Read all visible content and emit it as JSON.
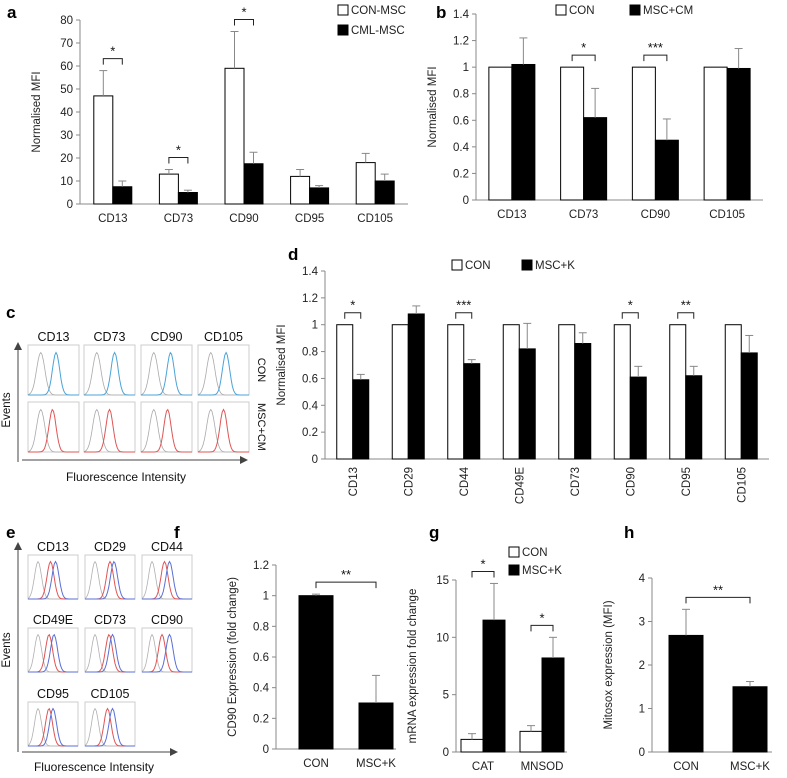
{
  "chart_data": [
    {
      "id": "a",
      "panel_letter": "a",
      "type": "bar",
      "ylabel": "Normalised MFI",
      "ylim": [
        0,
        80
      ],
      "yticks": [
        0,
        10,
        20,
        30,
        40,
        50,
        60,
        70,
        80
      ],
      "categories": [
        "CD13",
        "CD73",
        "CD90",
        "CD95",
        "CD105"
      ],
      "series": [
        {
          "name": "CON-MSC",
          "fill": "#ffffff",
          "values": [
            47,
            13,
            59,
            12,
            18
          ],
          "errors": [
            11,
            2,
            16,
            3,
            4
          ]
        },
        {
          "name": "CML-MSC",
          "fill": "#000000",
          "values": [
            7.5,
            5,
            17.5,
            7,
            10
          ],
          "errors": [
            2.5,
            1,
            5,
            1,
            3
          ]
        }
      ],
      "significance": [
        {
          "category": 0,
          "label": "*"
        },
        {
          "category": 1,
          "label": "*"
        },
        {
          "category": 2,
          "label": "*"
        }
      ],
      "legend_position": "top-right"
    },
    {
      "id": "b",
      "panel_letter": "b",
      "type": "bar",
      "ylabel": "Normalised MFI",
      "ylim": [
        0,
        1.4
      ],
      "yticks": [
        "0",
        "0.2",
        "0.4",
        "0.6",
        "0.8",
        "1",
        "1.2",
        "1.4"
      ],
      "categories": [
        "CD13",
        "CD73",
        "CD90",
        "CD105"
      ],
      "series": [
        {
          "name": "CON",
          "fill": "#ffffff",
          "values": [
            1,
            1,
            1,
            1
          ],
          "errors": [
            0,
            0,
            0,
            0
          ]
        },
        {
          "name": "MSC+CM",
          "fill": "#000000",
          "values": [
            1.02,
            0.62,
            0.45,
            0.99
          ],
          "errors": [
            0.2,
            0.22,
            0.16,
            0.15
          ]
        }
      ],
      "significance": [
        {
          "category": 1,
          "label": "*"
        },
        {
          "category": 2,
          "label": "***"
        }
      ],
      "legend_position": "top"
    },
    {
      "id": "d",
      "panel_letter": "d",
      "type": "bar",
      "ylabel": "Normalised MFI",
      "ylim": [
        0,
        1.4
      ],
      "yticks": [
        "0",
        "0.2",
        "0.4",
        "0.6",
        "0.8",
        "1",
        "1.2",
        "1.4"
      ],
      "categories": [
        "CD13",
        "CD29",
        "CD44",
        "CD49E",
        "CD73",
        "CD90",
        "CD95",
        "CD105"
      ],
      "series": [
        {
          "name": "CON",
          "fill": "#ffffff",
          "values": [
            1,
            1,
            1,
            1,
            1,
            1,
            1,
            1
          ],
          "errors": [
            0,
            0,
            0,
            0,
            0,
            0,
            0,
            0
          ]
        },
        {
          "name": "MSC+K",
          "fill": "#000000",
          "values": [
            0.59,
            1.08,
            0.71,
            0.82,
            0.86,
            0.61,
            0.62,
            0.79
          ],
          "errors": [
            0.04,
            0.06,
            0.03,
            0.19,
            0.08,
            0.08,
            0.07,
            0.13
          ]
        }
      ],
      "significance": [
        {
          "category": 0,
          "label": "*"
        },
        {
          "category": 2,
          "label": "***"
        },
        {
          "category": 5,
          "label": "*"
        },
        {
          "category": 6,
          "label": "**"
        }
      ],
      "legend_position": "top"
    },
    {
      "id": "f",
      "panel_letter": "f",
      "type": "bar",
      "ylabel": "CD90 Expression (fold change)",
      "ylim": [
        0,
        1.2
      ],
      "yticks": [
        "0",
        "0.2",
        "0.4",
        "0.6",
        "0.8",
        "1",
        "1.2"
      ],
      "categories": [
        "CON",
        "MSC+K"
      ],
      "series": [
        {
          "name": "",
          "fill": "#000000",
          "values": [
            1.0,
            0.3
          ],
          "errors": [
            0.01,
            0.18
          ]
        }
      ],
      "significance": [
        {
          "from": 0,
          "to": 1,
          "label": "**"
        }
      ]
    },
    {
      "id": "g",
      "panel_letter": "g",
      "type": "bar",
      "ylabel": "mRNA expression fold change",
      "ylim": [
        0,
        15
      ],
      "yticks": [
        "0",
        "5",
        "10",
        "15"
      ],
      "categories": [
        "CAT",
        "MNSOD"
      ],
      "series": [
        {
          "name": "CON",
          "fill": "#ffffff",
          "values": [
            1.1,
            1.8
          ],
          "errors": [
            0.5,
            0.5
          ]
        },
        {
          "name": "MSC+K",
          "fill": "#000000",
          "values": [
            11.5,
            8.2
          ],
          "errors": [
            3.2,
            1.8
          ]
        }
      ],
      "significance": [
        {
          "category": 0,
          "label": "*"
        },
        {
          "category": 1,
          "label": "*"
        }
      ],
      "legend_position": "top-right"
    },
    {
      "id": "h",
      "panel_letter": "h",
      "type": "bar",
      "ylabel": "Mitosox expression (MFI)",
      "ylim": [
        0,
        4
      ],
      "yticks": [
        "0",
        "1",
        "2",
        "3",
        "4"
      ],
      "categories": [
        "CON",
        "MSC+K"
      ],
      "series": [
        {
          "name": "",
          "fill": "#000000",
          "values": [
            2.68,
            1.5
          ],
          "errors": [
            0.6,
            0.12
          ]
        }
      ],
      "significance": [
        {
          "from": 0,
          "to": 1,
          "label": "**"
        }
      ]
    }
  ],
  "flow_panels": [
    {
      "id": "c",
      "panel_letter": "c",
      "markers": [
        "CD13",
        "CD73",
        "CD90",
        "CD105"
      ],
      "rows": [
        {
          "label": "CON",
          "color": "#4aa3d8",
          "shifts": [
            0.55,
            0.6,
            0.58,
            0.55
          ]
        },
        {
          "label": "MSC+CM",
          "color": "#e05555",
          "shifts": [
            0.48,
            0.5,
            0.52,
            0.5
          ]
        }
      ],
      "ylabel": "Events",
      "xlabel": "Fluorescence Intensity"
    },
    {
      "id": "e",
      "panel_letter": "e",
      "markers": [
        "CD13",
        "CD29",
        "CD44",
        "CD49E",
        "CD73",
        "CD90",
        "CD95",
        "CD105"
      ],
      "ylabel": "Events",
      "xlabel": "Fluorescence Intensity",
      "colors": {
        "isotype": "#b0b0b0",
        "con": "#5b6fd6",
        "treated": "#e05555"
      }
    }
  ]
}
